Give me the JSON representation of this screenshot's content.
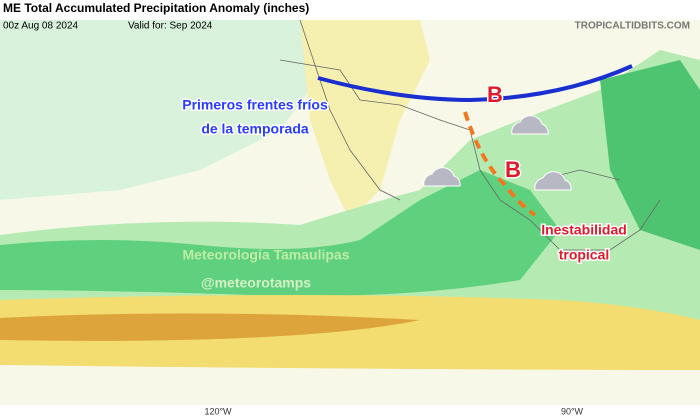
{
  "header": {
    "title": "ME Total Accumulated Precipitation Anomaly (inches)",
    "init": "00z Aug 08 2024",
    "valid": "Valid for: Sep 2024",
    "source": "TROPICALTIDBITS.COM"
  },
  "annotations": {
    "fronts": [
      "Primeros frentes fríos",
      "de la temporada"
    ],
    "low_north": "B",
    "low_south": "B",
    "tropical": [
      "Inestabilidad",
      "tropical"
    ],
    "author": "Meteorología Tamaulipas",
    "handle": "@meteorotamps"
  },
  "axis": {
    "lon_labels": [
      "120°W",
      "90°W"
    ]
  }
}
